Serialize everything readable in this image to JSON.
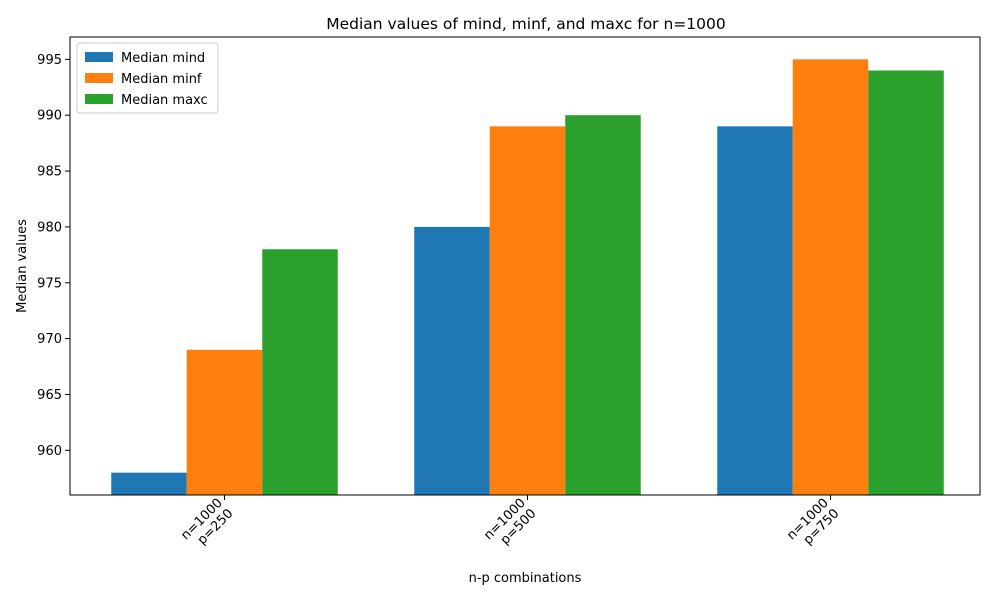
{
  "chart_data": {
    "type": "bar",
    "title": "Median values of mind, minf, and maxc for n=1000",
    "xlabel": "n-p combinations",
    "ylabel": "Median values",
    "categories": [
      [
        "n=1000",
        "p=250"
      ],
      [
        "n=1000",
        "p=500"
      ],
      [
        "n=1000",
        "p=750"
      ]
    ],
    "series": [
      {
        "name": "Median mind",
        "color": "#1f77b4",
        "values": [
          958,
          980,
          989
        ]
      },
      {
        "name": "Median minf",
        "color": "#ff7f0e",
        "values": [
          969,
          989,
          995
        ]
      },
      {
        "name": "Median maxc",
        "color": "#2ca02c",
        "values": [
          978,
          990,
          994
        ]
      }
    ],
    "ylim": [
      956,
      997
    ],
    "yticks": [
      960,
      965,
      970,
      975,
      980,
      985,
      990,
      995
    ],
    "grid": false,
    "legend": "top-left"
  }
}
